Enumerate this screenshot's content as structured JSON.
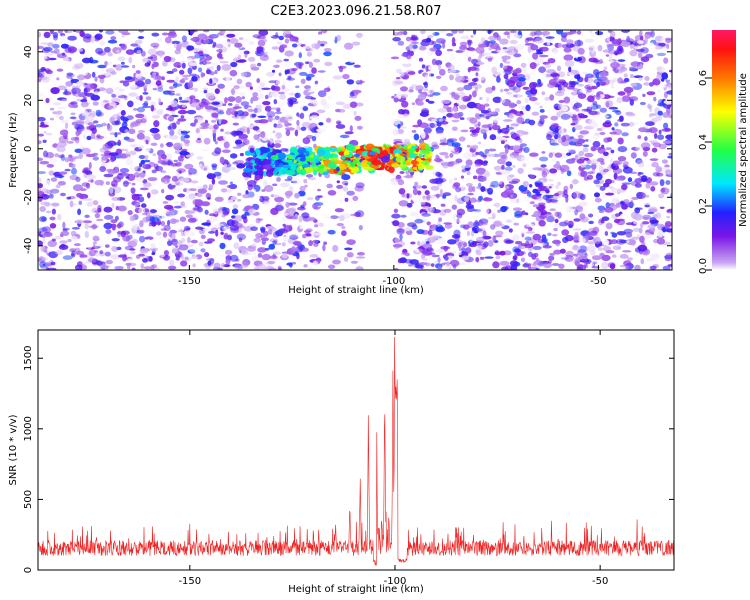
{
  "title": "C2E3.2023.096.21.58.R07",
  "colors": {
    "snr_line": "#ee2222",
    "spectrogram_low": "#c9a6f2",
    "spectrogram_mid": "#7a16e6",
    "spectrogram_high": "#ff1a66"
  },
  "chart_data": [
    {
      "type": "heatmap",
      "title": "",
      "xlabel": "Height of straight line (km)",
      "ylabel": "Frequency (Hz)",
      "xlim": [
        -187,
        -32
      ],
      "ylim": [
        -50,
        49
      ],
      "x_ticks": [
        -150,
        -100,
        -50
      ],
      "y_ticks": [
        -40,
        -20,
        0,
        20,
        40
      ],
      "no_data_x_range": [
        -108,
        -100
      ],
      "background_noise_amplitude": [
        0.0,
        0.2
      ],
      "signal": {
        "x_range": [
          -136,
          -91
        ],
        "frequency_hz": -4,
        "peak_x": -103,
        "peak_amplitude": 0.7
      },
      "colorbar": {
        "label": "Normalized spectral amplitude",
        "range": [
          0.0,
          0.75
        ],
        "ticks": [
          0.0,
          0.2,
          0.4,
          0.6
        ],
        "tick_labels": [
          "0.0",
          "0.2",
          "0.4",
          "0.6"
        ]
      }
    },
    {
      "type": "line",
      "title": "",
      "xlabel": "Height of straight line (km)",
      "ylabel": "SNR (10 * v/v)",
      "xlim": [
        -187,
        -32
      ],
      "ylim": [
        0,
        1700
      ],
      "x_ticks": [
        -150,
        -100,
        -50
      ],
      "y_ticks": [
        0,
        500,
        1000,
        1500
      ],
      "series": [
        {
          "noise_floor": [
            40,
            300
          ],
          "peaks": [
            {
              "x": -100.0,
              "y": 1700
            },
            {
              "x": -100.5,
              "y": 1520
            },
            {
              "x": -102.5,
              "y": 1380
            },
            {
              "x": -104.5,
              "y": 1200
            },
            {
              "x": -106.5,
              "y": 1170
            },
            {
              "x": -108.5,
              "y": 780
            },
            {
              "x": -111.0,
              "y": 520
            },
            {
              "x": -114.5,
              "y": 420
            }
          ]
        }
      ]
    }
  ]
}
